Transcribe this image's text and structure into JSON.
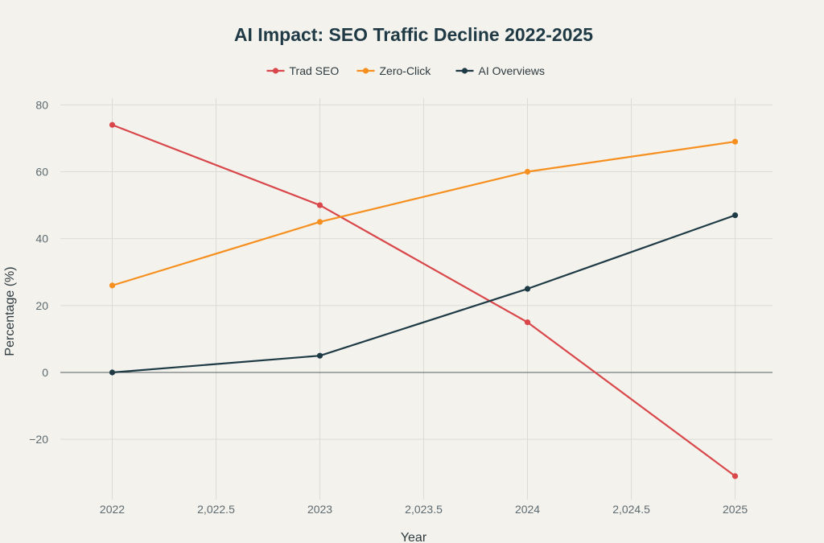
{
  "chart_data": {
    "type": "line",
    "title": "AI Impact: SEO Traffic Decline 2022-2025",
    "xlabel": "Year",
    "ylabel": "Percentage (%)",
    "xlim": [
      2021.75,
      2025.18
    ],
    "ylim": [
      -38,
      82
    ],
    "x_ticks": [
      2022,
      2022.5,
      2023,
      2023.5,
      2024,
      2024.5,
      2025
    ],
    "x_tick_labels": [
      "2022",
      "2,022.5",
      "2023",
      "2,023.5",
      "2024",
      "2,024.5",
      "2025"
    ],
    "y_ticks": [
      -20,
      0,
      20,
      40,
      60,
      80
    ],
    "y_tick_labels": [
      "−20",
      "0",
      "20",
      "40",
      "60",
      "80"
    ],
    "x": [
      2022,
      2023,
      2024,
      2025
    ],
    "series": [
      {
        "name": "Trad SEO",
        "color": "#d9474a",
        "values": [
          74,
          50,
          15,
          -31
        ]
      },
      {
        "name": "Zero-Click",
        "color": "#f68f1e",
        "values": [
          26,
          45,
          60,
          69
        ]
      },
      {
        "name": "AI Overviews",
        "color": "#1e3a45",
        "values": [
          0,
          5,
          25,
          47
        ]
      }
    ],
    "legend_position": "top-center",
    "grid": true
  }
}
